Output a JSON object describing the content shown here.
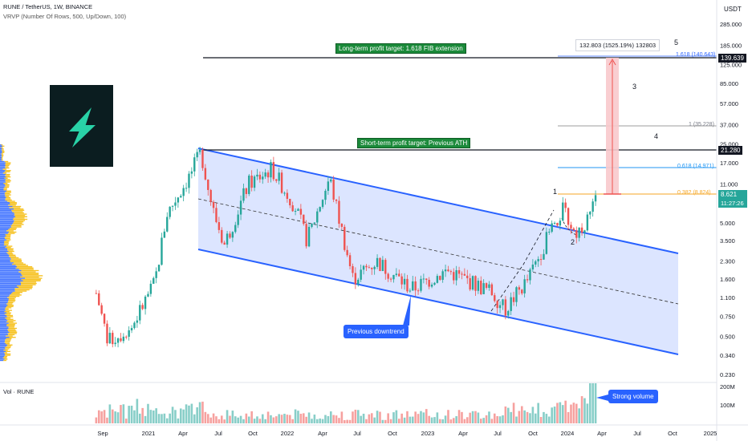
{
  "header": {
    "symbol_line": "RUNE / TetherUS, 1W, BINANCE",
    "indicator_line": "VRVP (Number Of Rows, 500, Up/Down, 100)",
    "volume_label": "Vol · RUNE"
  },
  "currency_label": "USDT",
  "annotations": {
    "long_term_target": "Long-term profit target: 1.618 FIB extension",
    "short_term_target": "Short-term profit target: Previous ATH",
    "previous_downtrend": "Previous downtrend",
    "strong_volume": "Strong volume",
    "measure_label": "132.803 (1525.19%) 132803"
  },
  "wave_labels": [
    "1",
    "2",
    "3",
    "4",
    "5"
  ],
  "fib_labels": {
    "f1618": "1.618 (140.643)",
    "f1": "1 (35.228)",
    "f0618": "0.618 (14.971)",
    "f0382": "0.382 (8.824)"
  },
  "price_badges": {
    "target_long": "139.639",
    "target_short": "21.280",
    "current_price": "8.621",
    "countdown": "11:27:26"
  },
  "colors": {
    "up": "#26a69a",
    "down": "#ef5350",
    "channel": "#2962ff",
    "channel_fill": "#d6e0ff",
    "fib_0382": "#f5a623",
    "fib_0618": "#2196f3",
    "fib_1": "#9e9e9e",
    "green_badge": "#1b8a3a",
    "blue_badge": "#2962ff",
    "measure_fill": "#f8c9cc",
    "vrvp_up": "#2962ff",
    "vrvp_down": "#f5b800"
  },
  "chart_data": {
    "type": "candlestick",
    "y_scale": "log",
    "y_ticks": [
      "285.000",
      "185.000",
      "125.000",
      "85.000",
      "57.000",
      "37.000",
      "25.000",
      "17.000",
      "11.000",
      "7.500",
      "5.000",
      "3.500",
      "2.300",
      "1.600",
      "1.100",
      "0.750",
      "0.500",
      "0.340",
      "0.230"
    ],
    "x_ticks": [
      "Sep",
      "2021",
      "Apr",
      "Jul",
      "Oct",
      "2022",
      "Apr",
      "Jul",
      "Oct",
      "2023",
      "Apr",
      "Jul",
      "Oct",
      "2024",
      "Apr",
      "Jul",
      "Oct",
      "2025"
    ],
    "volume_ticks": [
      "200M",
      "100M"
    ],
    "price_path": [
      {
        "date": "2020-08",
        "price": 1.2
      },
      {
        "date": "2020-09",
        "price": 0.45
      },
      {
        "date": "2020-11",
        "price": 0.6
      },
      {
        "date": "2021-01",
        "price": 1.5
      },
      {
        "date": "2021-02",
        "price": 6.0
      },
      {
        "date": "2021-04",
        "price": 13.0
      },
      {
        "date": "2021-05",
        "price": 21.0
      },
      {
        "date": "2021-06",
        "price": 6.5
      },
      {
        "date": "2021-07",
        "price": 3.2
      },
      {
        "date": "2021-09",
        "price": 11.0
      },
      {
        "date": "2021-11",
        "price": 15.0
      },
      {
        "date": "2022-01",
        "price": 7.0
      },
      {
        "date": "2022-02",
        "price": 3.5
      },
      {
        "date": "2022-04",
        "price": 12.5
      },
      {
        "date": "2022-06",
        "price": 1.6
      },
      {
        "date": "2022-08",
        "price": 2.3
      },
      {
        "date": "2022-11",
        "price": 1.3
      },
      {
        "date": "2023-02",
        "price": 1.9
      },
      {
        "date": "2023-06",
        "price": 1.2
      },
      {
        "date": "2023-07",
        "price": 0.85
      },
      {
        "date": "2023-09",
        "price": 1.6
      },
      {
        "date": "2023-11",
        "price": 4.5
      },
      {
        "date": "2023-12",
        "price": 6.5
      },
      {
        "date": "2024-01",
        "price": 4.0
      },
      {
        "date": "2024-02",
        "price": 5.3
      },
      {
        "date": "2024-03",
        "price": 8.621
      }
    ],
    "fib_levels": [
      {
        "ratio": "1.618",
        "price": 140.643
      },
      {
        "ratio": "1",
        "price": 35.228
      },
      {
        "ratio": "0.618",
        "price": 14.971
      },
      {
        "ratio": "0.382",
        "price": 8.824
      }
    ],
    "horizontal_targets": [
      139.639,
      21.28
    ],
    "current_price": 8.621
  }
}
